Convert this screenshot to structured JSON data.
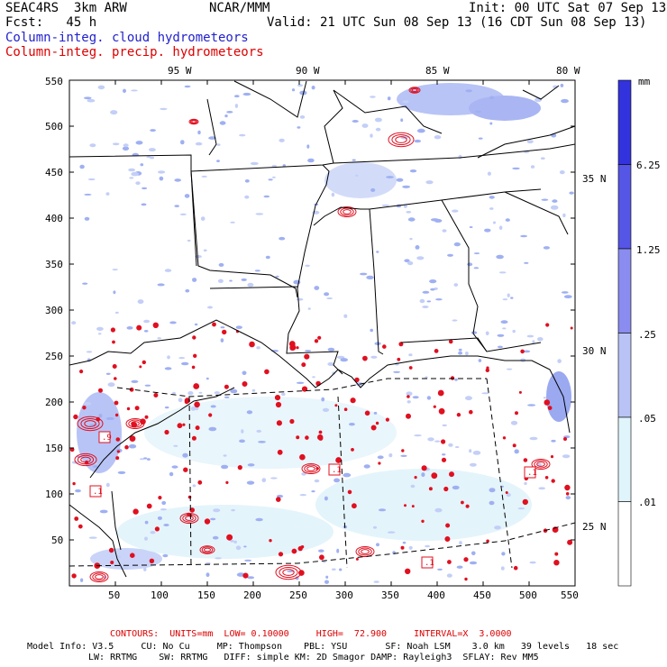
{
  "header": {
    "left1": "SEAC4RS  3km ARW",
    "center1": "NCAR/MMM",
    "right1": "Init: 00 UTC Sat 07 Sep 13",
    "left2": "Fcst:   45 h",
    "right2": "Valid: 21 UTC Sun 08 Sep 13 (16 CDT Sun 08 Sep 13)",
    "field1": "Column-integ. cloud hydrometeors",
    "field2": "Column-integ. precip. hydrometeors"
  },
  "map": {
    "lon_labels": [
      "95 W",
      "90 W",
      "85 W",
      "80 W"
    ],
    "lat_labels": [
      "35 N",
      "30 N",
      "25 N"
    ],
    "x_ticks": [
      "50",
      "100",
      "150",
      "200",
      "250",
      "300",
      "350",
      "400",
      "450",
      "500",
      "550"
    ],
    "y_ticks": [
      "550",
      "500",
      "450",
      "400",
      "350",
      "300",
      "250",
      "200",
      "150",
      "100",
      "50"
    ],
    "contour_labels": [
      ".9",
      ".1",
      ".1",
      ".1",
      ".1"
    ]
  },
  "colorbar": {
    "unit": "mm",
    "levels": [
      "6.25",
      "1.25",
      ".25",
      ".05",
      ".01"
    ],
    "colors": [
      "#3333dd",
      "#5555e6",
      "#8a8cf0",
      "#b9c3f5",
      "#dff4fb",
      "#ffffff"
    ]
  },
  "footer": {
    "contours": "CONTOURS:  UNITS=mm  LOW= 0.10000     HIGH=  72.900     INTERVAL=X  3.0000",
    "model1": "Model Info: V3.5     CU: No Cu     MP: Thompson    PBL: YSU       SF: Noah LSM    3.0 km   39 levels   18 sec",
    "model2": "LW: RRTMG    SW: RRTMG   DIFF: simple KM: 2D Smagor DAMP: Rayleigh3  SFLAY: Rev MM5"
  },
  "colors": {
    "cloud": "#8a9cf0",
    "precip": "#e01020",
    "border": "#000000"
  }
}
